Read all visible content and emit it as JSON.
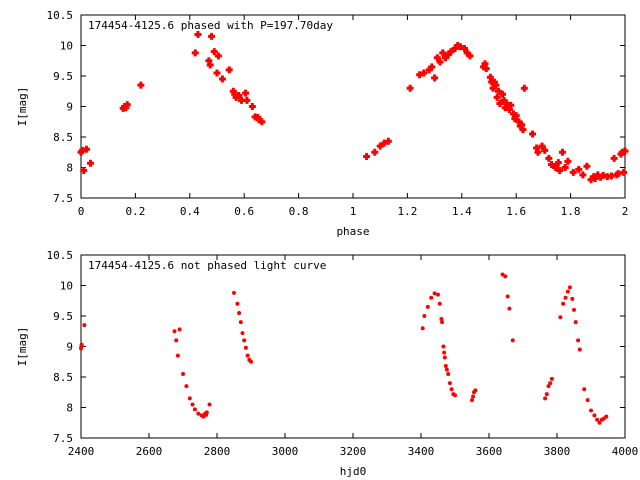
{
  "chart_data": [
    {
      "type": "scatter",
      "title": "174454-4125.6 phased with P=197.70day",
      "xlabel": "phase",
      "ylabel": "I[mag]",
      "xlim": [
        0,
        2
      ],
      "ylim": [
        10.5,
        7.5
      ],
      "y_inverted": true,
      "grid": false,
      "marker_color": "#ff0000",
      "marker_shape": "cross-blob",
      "xticks": [
        0,
        0.2,
        0.4,
        0.6,
        0.8,
        1,
        1.2,
        1.4,
        1.6,
        1.8,
        2
      ],
      "yticks": [
        7.5,
        8,
        8.5,
        9,
        9.5,
        10,
        10.5
      ],
      "points": [
        [
          0.0,
          8.25
        ],
        [
          0.005,
          8.28
        ],
        [
          0.01,
          7.95
        ],
        [
          0.02,
          8.3
        ],
        [
          0.035,
          8.07
        ],
        [
          0.155,
          8.97
        ],
        [
          0.16,
          9.0
        ],
        [
          0.165,
          8.98
        ],
        [
          0.17,
          9.03
        ],
        [
          0.22,
          9.35
        ],
        [
          0.42,
          9.88
        ],
        [
          0.43,
          10.18
        ],
        [
          0.47,
          9.75
        ],
        [
          0.475,
          9.68
        ],
        [
          0.48,
          10.15
        ],
        [
          0.49,
          9.9
        ],
        [
          0.5,
          9.55
        ],
        [
          0.505,
          9.83
        ],
        [
          0.52,
          9.45
        ],
        [
          0.545,
          9.6
        ],
        [
          0.56,
          9.25
        ],
        [
          0.565,
          9.2
        ],
        [
          0.57,
          9.15
        ],
        [
          0.58,
          9.18
        ],
        [
          0.59,
          9.1
        ],
        [
          0.605,
          9.22
        ],
        [
          0.61,
          9.1
        ],
        [
          0.63,
          9.0
        ],
        [
          0.64,
          8.83
        ],
        [
          0.65,
          8.82
        ],
        [
          0.655,
          8.78
        ],
        [
          0.665,
          8.75
        ],
        [
          1.05,
          8.18
        ],
        [
          1.08,
          8.25
        ],
        [
          1.1,
          8.35
        ],
        [
          1.115,
          8.4
        ],
        [
          1.13,
          8.43
        ],
        [
          1.21,
          9.3
        ],
        [
          1.245,
          9.52
        ],
        [
          1.26,
          9.55
        ],
        [
          1.28,
          9.6
        ],
        [
          1.29,
          9.65
        ],
        [
          1.3,
          9.47
        ],
        [
          1.31,
          9.8
        ],
        [
          1.32,
          9.73
        ],
        [
          1.33,
          9.88
        ],
        [
          1.34,
          9.8
        ],
        [
          1.35,
          9.85
        ],
        [
          1.36,
          9.9
        ],
        [
          1.375,
          9.95
        ],
        [
          1.385,
          10.0
        ],
        [
          1.395,
          9.98
        ],
        [
          1.41,
          9.95
        ],
        [
          1.42,
          9.88
        ],
        [
          1.43,
          9.83
        ],
        [
          1.48,
          9.65
        ],
        [
          1.485,
          9.7
        ],
        [
          1.49,
          9.62
        ],
        [
          1.505,
          9.48
        ],
        [
          1.51,
          9.4
        ],
        [
          1.515,
          9.3
        ],
        [
          1.52,
          9.4
        ],
        [
          1.525,
          9.35
        ],
        [
          1.53,
          9.15
        ],
        [
          1.535,
          9.25
        ],
        [
          1.54,
          9.05
        ],
        [
          1.55,
          9.2
        ],
        [
          1.555,
          9.1
        ],
        [
          1.56,
          8.98
        ],
        [
          1.565,
          9.05
        ],
        [
          1.575,
          8.95
        ],
        [
          1.58,
          9.02
        ],
        [
          1.59,
          8.88
        ],
        [
          1.595,
          8.8
        ],
        [
          1.6,
          8.85
        ],
        [
          1.61,
          8.75
        ],
        [
          1.615,
          8.68
        ],
        [
          1.62,
          8.7
        ],
        [
          1.625,
          8.62
        ],
        [
          1.63,
          9.3
        ],
        [
          1.66,
          8.55
        ],
        [
          1.675,
          8.32
        ],
        [
          1.68,
          8.25
        ],
        [
          1.695,
          8.35
        ],
        [
          1.705,
          8.28
        ],
        [
          1.72,
          8.15
        ],
        [
          1.73,
          8.05
        ],
        [
          1.745,
          8.0
        ],
        [
          1.755,
          8.08
        ],
        [
          1.76,
          7.95
        ],
        [
          1.77,
          8.25
        ],
        [
          1.78,
          8.0
        ],
        [
          1.79,
          8.1
        ],
        [
          1.81,
          7.92
        ],
        [
          1.83,
          7.97
        ],
        [
          1.845,
          7.88
        ],
        [
          1.86,
          8.02
        ],
        [
          1.875,
          7.8
        ],
        [
          1.885,
          7.85
        ],
        [
          1.89,
          7.82
        ],
        [
          1.9,
          7.88
        ],
        [
          1.91,
          7.84
        ],
        [
          1.92,
          7.87
        ],
        [
          1.935,
          7.85
        ],
        [
          1.95,
          7.86
        ],
        [
          1.96,
          8.15
        ],
        [
          1.97,
          7.88
        ],
        [
          1.975,
          7.9
        ],
        [
          1.985,
          8.22
        ],
        [
          1.99,
          8.25
        ],
        [
          1.995,
          7.92
        ],
        [
          2.0,
          8.27
        ]
      ]
    },
    {
      "type": "scatter",
      "title": "174454-4125.6 not phased light curve",
      "xlabel": "hjd0",
      "ylabel": "I[mag]",
      "xlim": [
        2400,
        4000
      ],
      "ylim": [
        10.5,
        7.5
      ],
      "y_inverted": true,
      "grid": false,
      "marker_color": "#ff0000",
      "marker_shape": "dot",
      "xticks": [
        2400,
        2600,
        2800,
        3000,
        3200,
        3400,
        3600,
        3800,
        4000
      ],
      "yticks": [
        7.5,
        8,
        8.5,
        9,
        9.5,
        10,
        10.5
      ],
      "points": [
        [
          2400,
          8.97
        ],
        [
          2401,
          9.0
        ],
        [
          2402,
          9.03
        ],
        [
          2410,
          9.35
        ],
        [
          2675,
          9.25
        ],
        [
          2680,
          9.1
        ],
        [
          2685,
          8.85
        ],
        [
          2690,
          9.28
        ],
        [
          2700,
          8.55
        ],
        [
          2710,
          8.35
        ],
        [
          2720,
          8.15
        ],
        [
          2728,
          8.05
        ],
        [
          2735,
          7.97
        ],
        [
          2745,
          7.9
        ],
        [
          2755,
          7.87
        ],
        [
          2760,
          7.85
        ],
        [
          2765,
          7.9
        ],
        [
          2768,
          7.88
        ],
        [
          2770,
          7.92
        ],
        [
          2778,
          8.05
        ],
        [
          2850,
          9.88
        ],
        [
          2860,
          9.7
        ],
        [
          2865,
          9.55
        ],
        [
          2870,
          9.4
        ],
        [
          2875,
          9.22
        ],
        [
          2880,
          9.1
        ],
        [
          2885,
          8.98
        ],
        [
          2890,
          8.85
        ],
        [
          2895,
          8.78
        ],
        [
          2900,
          8.75
        ],
        [
          3405,
          9.3
        ],
        [
          3410,
          9.5
        ],
        [
          3420,
          9.65
        ],
        [
          3430,
          9.8
        ],
        [
          3440,
          9.87
        ],
        [
          3450,
          9.85
        ],
        [
          3455,
          9.7
        ],
        [
          3460,
          9.45
        ],
        [
          3462,
          9.4
        ],
        [
          3466,
          9.0
        ],
        [
          3468,
          8.9
        ],
        [
          3470,
          8.82
        ],
        [
          3473,
          8.68
        ],
        [
          3476,
          8.62
        ],
        [
          3480,
          8.55
        ],
        [
          3485,
          8.4
        ],
        [
          3490,
          8.3
        ],
        [
          3495,
          8.22
        ],
        [
          3500,
          8.2
        ],
        [
          3550,
          8.12
        ],
        [
          3553,
          8.18
        ],
        [
          3556,
          8.25
        ],
        [
          3560,
          8.28
        ],
        [
          3640,
          10.18
        ],
        [
          3648,
          10.15
        ],
        [
          3655,
          9.82
        ],
        [
          3660,
          9.62
        ],
        [
          3670,
          9.1
        ],
        [
          3765,
          8.15
        ],
        [
          3770,
          8.22
        ],
        [
          3775,
          8.35
        ],
        [
          3780,
          8.4
        ],
        [
          3785,
          8.47
        ],
        [
          3810,
          9.48
        ],
        [
          3818,
          9.7
        ],
        [
          3825,
          9.8
        ],
        [
          3832,
          9.9
        ],
        [
          3838,
          9.97
        ],
        [
          3845,
          9.78
        ],
        [
          3850,
          9.6
        ],
        [
          3855,
          9.4
        ],
        [
          3862,
          9.1
        ],
        [
          3867,
          8.95
        ],
        [
          3880,
          8.3
        ],
        [
          3890,
          8.12
        ],
        [
          3900,
          7.95
        ],
        [
          3910,
          7.87
        ],
        [
          3918,
          7.8
        ],
        [
          3925,
          7.75
        ],
        [
          3932,
          7.8
        ],
        [
          3938,
          7.82
        ],
        [
          3945,
          7.85
        ]
      ]
    }
  ]
}
